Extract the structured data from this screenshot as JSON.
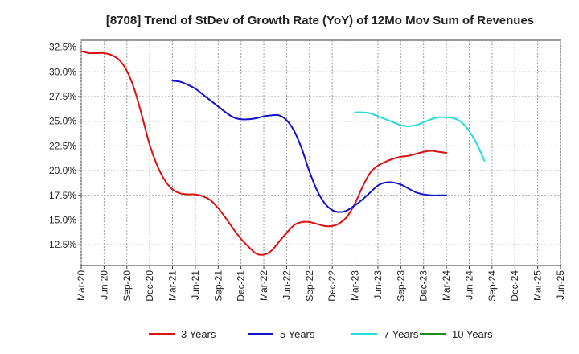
{
  "chart_data": {
    "type": "line",
    "title": "[8708]  Trend of StDev of Growth Rate (YoY) of 12Mo Mov Sum of Revenues",
    "xlabel": "",
    "ylabel": "",
    "ylim": [
      10.4,
      33.2
    ],
    "y_ticks": [
      12.5,
      15.0,
      17.5,
      20.0,
      22.5,
      25.0,
      27.5,
      30.0,
      32.5
    ],
    "y_tick_labels": [
      "12.5%",
      "15.0%",
      "17.5%",
      "20.0%",
      "22.5%",
      "25.0%",
      "27.5%",
      "30.0%",
      "32.5%"
    ],
    "x_tick_labels": [
      "Mar-20",
      "Jun-20",
      "Sep-20",
      "Dec-20",
      "Mar-21",
      "Jun-21",
      "Sep-21",
      "Dec-21",
      "Mar-22",
      "Jun-22",
      "Sep-22",
      "Dec-22",
      "Mar-23",
      "Jun-23",
      "Sep-23",
      "Dec-23",
      "Mar-24",
      "Jun-24",
      "Sep-24",
      "Dec-24",
      "Mar-25",
      "Jun-25"
    ],
    "grid": true,
    "legend_position": "bottom",
    "series": [
      {
        "name": "3 Years",
        "color": "#dd1111",
        "start_index": 0,
        "values": [
          32.1,
          31.9,
          31.9,
          31.9,
          31.7,
          31.2,
          30.1,
          28.2,
          25.5,
          22.6,
          20.5,
          19.0,
          18.1,
          17.7,
          17.6,
          17.6,
          17.4,
          17.0,
          16.2,
          15.2,
          14.1,
          13.1,
          12.3,
          11.6,
          11.5,
          11.9,
          12.8,
          13.7,
          14.5,
          14.8,
          14.8,
          14.6,
          14.4,
          14.4,
          14.7,
          15.4,
          16.7,
          18.4,
          19.8,
          20.5,
          20.9,
          21.2,
          21.4,
          21.5,
          21.7,
          21.9,
          22.0,
          21.9,
          21.8
        ]
      },
      {
        "name": "5 Years",
        "color": "#1111cc",
        "start_index": 12,
        "values": [
          29.1,
          29.0,
          28.7,
          28.3,
          27.7,
          27.1,
          26.5,
          25.9,
          25.4,
          25.2,
          25.2,
          25.3,
          25.5,
          25.6,
          25.6,
          25.1,
          24.0,
          22.2,
          19.9,
          18.0,
          16.7,
          16.0,
          15.8,
          16.0,
          16.5,
          17.1,
          17.8,
          18.5,
          18.8,
          18.8,
          18.6,
          18.2,
          17.8,
          17.6,
          17.5,
          17.5,
          17.5
        ]
      },
      {
        "name": "7 Years",
        "color": "#22dddd",
        "start_index": 36,
        "values": [
          25.9,
          25.9,
          25.8,
          25.5,
          25.2,
          24.9,
          24.6,
          24.5,
          24.6,
          24.9,
          25.2,
          25.4,
          25.4,
          25.3,
          24.9,
          24.0,
          22.7,
          21.0
        ]
      },
      {
        "name": "10 Years",
        "color": "#228822",
        "start_index": 0,
        "values": []
      }
    ]
  }
}
